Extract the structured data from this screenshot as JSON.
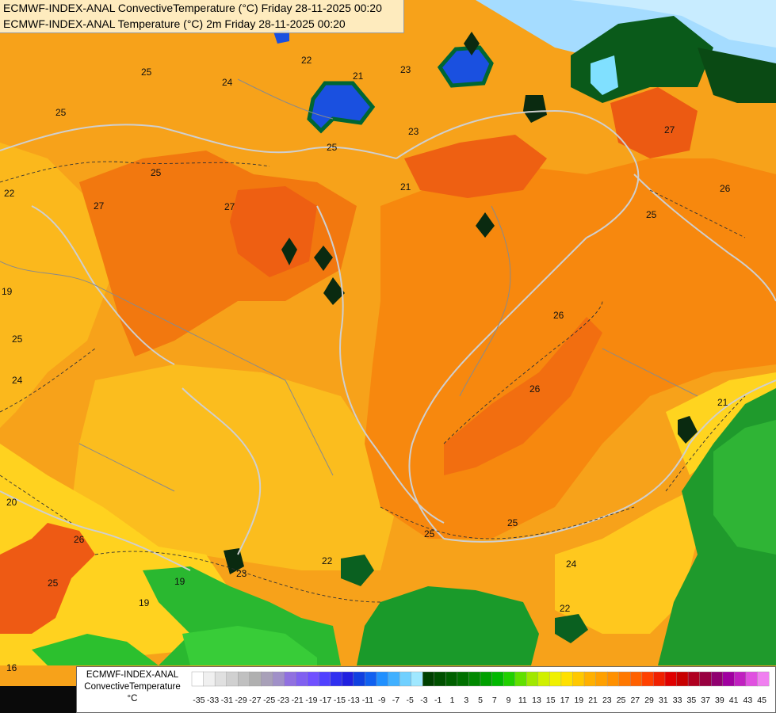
{
  "titles": {
    "line1": "ECMWF-INDEX-ANAL ConvectiveTemperature (°C) Friday 28-11-2025 00:20",
    "line2": "ECMWF-INDEX-ANAL Temperature (°C) 2m Friday 28-11-2025 00:20"
  },
  "legend": {
    "line1": "ECMWF-INDEX-ANAL",
    "line2": "ConvectiveTemperature",
    "line3": "°C",
    "ticks": [
      "-35",
      "-33",
      "-31",
      "-29",
      "-27",
      "-25",
      "-23",
      "-21",
      "-19",
      "-17",
      "-15",
      "-13",
      "-11",
      "-9",
      "-7",
      "-5",
      "-3",
      "-1",
      "1",
      "3",
      "5",
      "7",
      "9",
      "11",
      "13",
      "15",
      "17",
      "19",
      "21",
      "23",
      "25",
      "27",
      "29",
      "31",
      "33",
      "35",
      "37",
      "39",
      "41",
      "43",
      "45"
    ],
    "colors": [
      "#ffffff",
      "#f0f0f0",
      "#e0e0e0",
      "#d0d0d0",
      "#c0c0c0",
      "#b0b0b0",
      "#a8a0b8",
      "#a090c8",
      "#9070e0",
      "#8060f0",
      "#7050ff",
      "#5040ff",
      "#3030f0",
      "#2020e0",
      "#1040e0",
      "#1060f0",
      "#2090ff",
      "#40b0ff",
      "#70d0ff",
      "#a0e8ff",
      "#004000",
      "#005000",
      "#006000",
      "#007000",
      "#008800",
      "#00a000",
      "#00b800",
      "#20d000",
      "#60e000",
      "#a0e800",
      "#d0f000",
      "#f0f000",
      "#ffe000",
      "#ffc800",
      "#ffb000",
      "#ffa000",
      "#ff9000",
      "#ff7800",
      "#ff6000",
      "#ff4000",
      "#f02000",
      "#e00000",
      "#c80000",
      "#b00020",
      "#980040",
      "#900070",
      "#a000a0",
      "#c020c0",
      "#e050e0",
      "#f080f0"
    ]
  },
  "map_labels": [
    "25",
    "25",
    "22",
    "24",
    "21",
    "23",
    "25",
    "23",
    "27",
    "27",
    "26",
    "25",
    "25",
    "22",
    "21",
    "27",
    "19",
    "25",
    "26",
    "24",
    "26",
    "25",
    "20",
    "26",
    "25",
    "19",
    "22",
    "23",
    "25",
    "24",
    "22",
    "21",
    "19",
    "16"
  ]
}
